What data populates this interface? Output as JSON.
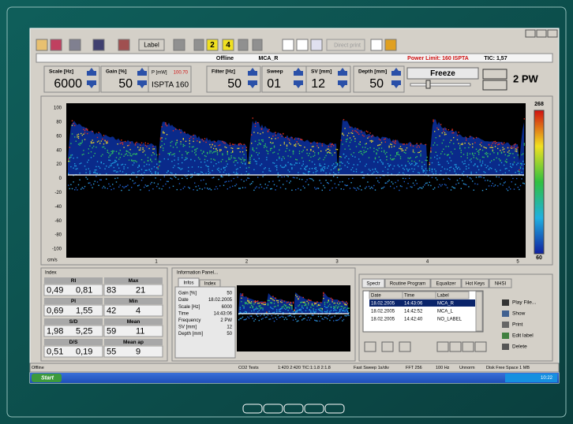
{
  "toolbar": {
    "label_button": "Label",
    "channel_buttons": [
      "2",
      "4"
    ],
    "direct_print": "Direct print"
  },
  "status": {
    "mode": "Offline",
    "vessel": "MCA_R",
    "power_limit": "Power Limit: 160 ISPTA",
    "tic": "TIC: 1,57"
  },
  "parameters": [
    {
      "label": "Scale [Hz]",
      "value": "6000"
    },
    {
      "label": "Gain [%]",
      "value": "50"
    },
    {
      "label": "Filter [Hz]",
      "value": "50"
    },
    {
      "label": "Sweep",
      "value": "01"
    },
    {
      "label": "SV [mm]",
      "value": "12"
    },
    {
      "label": "Depth [mm]",
      "value": "50"
    }
  ],
  "power": {
    "label": "P [mW]",
    "value": "100.70",
    "ispta": "ISPTA 160"
  },
  "freeze": "Freeze",
  "probe_mode": "2 PW",
  "spectrum": {
    "y_labels": [
      "100",
      "80",
      "60",
      "40",
      "20",
      "0",
      "-20",
      "-40",
      "-60",
      "-80",
      "-100"
    ],
    "unit": "cm/s",
    "x_labels": [
      "1",
      "2",
      "3",
      "4",
      "5"
    ],
    "scale_max": "268",
    "scale_min": "60"
  },
  "index_panel": {
    "title": "Index",
    "cells": [
      {
        "name": "RI",
        "values": [
          "0,49",
          "0,81"
        ]
      },
      {
        "name": "Max",
        "values": [
          "83",
          "21"
        ]
      },
      {
        "name": "PI",
        "values": [
          "0,69",
          "1,55"
        ]
      },
      {
        "name": "Min",
        "values": [
          "42",
          "4"
        ]
      },
      {
        "name": "S/D",
        "values": [
          "1,98",
          "5,25"
        ]
      },
      {
        "name": "Mean",
        "values": [
          "59",
          "11"
        ]
      },
      {
        "name": "D/S",
        "values": [
          "0,51",
          "0,19"
        ]
      },
      {
        "name": "Mean ap",
        "values": [
          "55",
          "9"
        ]
      }
    ]
  },
  "info_panel": {
    "title": "Information Panel...",
    "tabs": [
      "Infos",
      "Index"
    ],
    "lines": [
      [
        "Gain [%]",
        "50"
      ],
      [
        "Date",
        "18.02.2005"
      ],
      [
        "Scale [Hz]",
        "6000"
      ],
      [
        "Time",
        "14:43:06"
      ],
      [
        "Frequency",
        "2 PW"
      ],
      [
        "SV [mm]",
        "12"
      ],
      [
        "Depth [mm]",
        "50"
      ]
    ]
  },
  "files_panel": {
    "tabs": [
      "Spectr",
      "Routine Program",
      "Equalizer",
      "Hot Keys",
      "NHSI"
    ],
    "columns": [
      "Date",
      "Time",
      "Label"
    ],
    "rows": [
      [
        "18.02.2005",
        "14:43:06",
        "MCA_R"
      ],
      [
        "18.02.2005",
        "14:42:52",
        "MCA_L"
      ],
      [
        "18.02.2005",
        "14:42:40",
        "NO_LABEL"
      ]
    ],
    "actions": [
      "Play File...",
      "Show",
      "Print",
      "Edit label",
      "Delete"
    ]
  },
  "status_bar": [
    "Offline",
    "CO2 Tests",
    "1:420 2:420 TIC:1:1.8 2:1.8",
    "Fast Sweep 1s/div",
    "FFT 256",
    "100 Hz",
    "Unnorm",
    "Disk Free Space 1 MB"
  ],
  "taskbar": {
    "start": "Start",
    "clock": "10:22"
  }
}
